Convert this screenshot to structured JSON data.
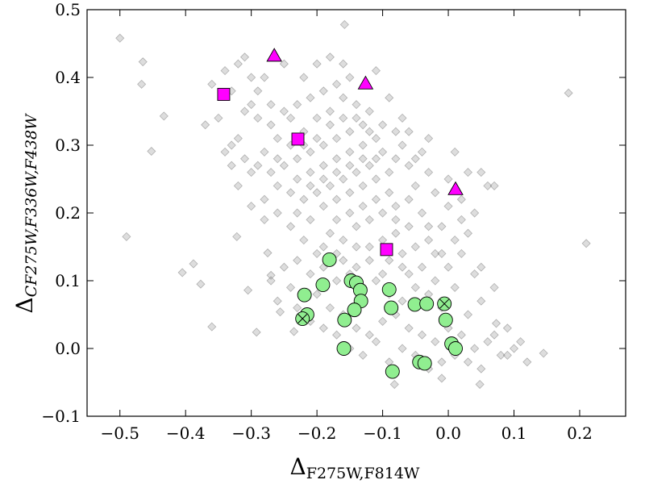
{
  "chart_data": {
    "type": "scatter",
    "xlabel": {
      "main": "Δ",
      "sub": "F275W,F814W"
    },
    "ylabel": {
      "main": "Δ",
      "sub": "CF275W,F336W,F438W"
    },
    "xlim": [
      -0.55,
      0.27
    ],
    "ylim": [
      -0.1,
      0.5
    ],
    "xticks": [
      -0.5,
      -0.4,
      -0.3,
      -0.2,
      -0.1,
      0.0,
      0.1,
      0.2
    ],
    "xtick_labels": [
      "−0.5",
      "−0.4",
      "−0.3",
      "−0.2",
      "−0.1",
      "0.0",
      "0.1",
      "0.2"
    ],
    "yticks": [
      -0.1,
      0.0,
      0.1,
      0.2,
      0.3,
      0.4,
      0.5
    ],
    "ytick_labels": [
      "−0.1",
      "0.0",
      "0.1",
      "0.2",
      "0.3",
      "0.4",
      "0.5"
    ],
    "grid": false,
    "series": [
      {
        "marker": "diamond",
        "color": "#a9a9a9",
        "points": [
          [
            -0.5,
            0.458
          ],
          [
            -0.465,
            0.423
          ],
          [
            -0.467,
            0.39
          ],
          [
            -0.452,
            0.291
          ],
          [
            -0.433,
            0.343
          ],
          [
            -0.49,
            0.165
          ],
          [
            -0.405,
            0.112
          ],
          [
            -0.388,
            0.125
          ],
          [
            -0.377,
            0.095
          ],
          [
            -0.36,
            0.032
          ],
          [
            -0.322,
            0.165
          ],
          [
            -0.305,
            0.086
          ],
          [
            -0.292,
            0.024
          ],
          [
            -0.275,
            0.141
          ],
          [
            -0.27,
            0.108
          ],
          [
            -0.256,
            0.054
          ],
          [
            -0.235,
            0.025
          ],
          [
            -0.158,
            0.478
          ],
          [
            0.183,
            0.377
          ],
          [
            0.21,
            0.155
          ],
          [
            0.145,
            -0.007
          ],
          [
            0.073,
            0.037
          ],
          [
            -0.082,
            -0.053
          ],
          [
            -0.01,
            -0.044
          ],
          [
            0.048,
            -0.053
          ],
          [
            -0.32,
            0.42
          ],
          [
            -0.3,
            0.4
          ],
          [
            -0.33,
            0.38
          ],
          [
            -0.3,
            0.36
          ],
          [
            -0.29,
            0.34
          ],
          [
            -0.32,
            0.31
          ],
          [
            -0.35,
            0.34
          ],
          [
            -0.37,
            0.33
          ],
          [
            -0.34,
            0.29
          ],
          [
            -0.33,
            0.27
          ],
          [
            -0.31,
            0.35
          ],
          [
            -0.28,
            0.4
          ],
          [
            -0.25,
            0.42
          ],
          [
            -0.22,
            0.4
          ],
          [
            -0.2,
            0.42
          ],
          [
            -0.18,
            0.43
          ],
          [
            -0.16,
            0.42
          ],
          [
            -0.15,
            0.4
          ],
          [
            -0.17,
            0.39
          ],
          [
            -0.19,
            0.38
          ],
          [
            -0.21,
            0.37
          ],
          [
            -0.23,
            0.36
          ],
          [
            -0.25,
            0.35
          ],
          [
            -0.27,
            0.33
          ],
          [
            -0.26,
            0.31
          ],
          [
            -0.24,
            0.3
          ],
          [
            -0.22,
            0.32
          ],
          [
            -0.2,
            0.34
          ],
          [
            -0.18,
            0.35
          ],
          [
            -0.16,
            0.37
          ],
          [
            -0.14,
            0.36
          ],
          [
            -0.12,
            0.35
          ],
          [
            -0.13,
            0.33
          ],
          [
            -0.15,
            0.32
          ],
          [
            -0.17,
            0.31
          ],
          [
            -0.19,
            0.3
          ],
          [
            -0.21,
            0.29
          ],
          [
            -0.23,
            0.28
          ],
          [
            -0.25,
            0.27
          ],
          [
            -0.27,
            0.26
          ],
          [
            -0.23,
            0.25
          ],
          [
            -0.21,
            0.26
          ],
          [
            -0.19,
            0.27
          ],
          [
            -0.17,
            0.28
          ],
          [
            -0.15,
            0.29
          ],
          [
            -0.13,
            0.3
          ],
          [
            -0.11,
            0.31
          ],
          [
            -0.1,
            0.29
          ],
          [
            -0.12,
            0.27
          ],
          [
            -0.14,
            0.26
          ],
          [
            -0.16,
            0.25
          ],
          [
            -0.18,
            0.24
          ],
          [
            -0.2,
            0.23
          ],
          [
            -0.22,
            0.22
          ],
          [
            -0.19,
            0.21
          ],
          [
            -0.17,
            0.22
          ],
          [
            -0.15,
            0.23
          ],
          [
            -0.13,
            0.24
          ],
          [
            -0.11,
            0.25
          ],
          [
            -0.09,
            0.26
          ],
          [
            -0.08,
            0.28
          ],
          [
            -0.07,
            0.3
          ],
          [
            -0.06,
            0.27
          ],
          [
            -0.09,
            0.23
          ],
          [
            -0.11,
            0.22
          ],
          [
            -0.13,
            0.21
          ],
          [
            -0.15,
            0.2
          ],
          [
            -0.17,
            0.19
          ],
          [
            -0.14,
            0.18
          ],
          [
            -0.12,
            0.19
          ],
          [
            -0.1,
            0.2
          ],
          [
            -0.08,
            0.21
          ],
          [
            -0.06,
            0.22
          ],
          [
            -0.05,
            0.24
          ],
          [
            -0.04,
            0.2
          ],
          [
            -0.06,
            0.18
          ],
          [
            -0.08,
            0.17
          ],
          [
            -0.1,
            0.16
          ],
          [
            -0.12,
            0.15
          ],
          [
            -0.09,
            0.13
          ],
          [
            -0.07,
            0.14
          ],
          [
            -0.05,
            0.15
          ],
          [
            -0.03,
            0.16
          ],
          [
            -0.01,
            0.18
          ],
          [
            -0.02,
            0.14
          ],
          [
            -0.04,
            0.12
          ],
          [
            -0.06,
            0.11
          ],
          [
            -0.02,
            0.1
          ],
          [
            0.0,
            0.12
          ],
          [
            0.02,
            0.14
          ],
          [
            -0.11,
            0.41
          ],
          [
            -0.09,
            0.37
          ],
          [
            -0.07,
            0.34
          ],
          [
            -0.06,
            0.32
          ],
          [
            -0.04,
            0.29
          ],
          [
            -0.03,
            0.26
          ],
          [
            0.0,
            0.25
          ],
          [
            0.01,
            0.29
          ],
          [
            0.03,
            0.26
          ],
          [
            0.02,
            0.22
          ],
          [
            0.04,
            0.2
          ],
          [
            0.06,
            0.24
          ],
          [
            0.05,
            0.26
          ],
          [
            0.02,
            0.19
          ],
          [
            0.01,
            0.16
          ],
          [
            -0.28,
            0.22
          ],
          [
            -0.26,
            0.2
          ],
          [
            -0.24,
            0.18
          ],
          [
            -0.22,
            0.16
          ],
          [
            -0.2,
            0.14
          ],
          [
            -0.23,
            0.13
          ],
          [
            -0.25,
            0.12
          ],
          [
            -0.27,
            0.1
          ],
          [
            -0.24,
            0.09
          ],
          [
            -0.26,
            0.07
          ],
          [
            -0.2,
            0.08
          ],
          [
            -0.18,
            0.06
          ],
          [
            -0.16,
            0.05
          ],
          [
            -0.14,
            0.03
          ],
          [
            -0.12,
            0.02
          ],
          [
            -0.1,
            0.04
          ],
          [
            -0.08,
            0.05
          ],
          [
            -0.06,
            0.03
          ],
          [
            -0.04,
            0.02
          ],
          [
            -0.02,
            0.01
          ],
          [
            0.0,
            0.03
          ],
          [
            0.02,
            0.02
          ],
          [
            0.04,
            0.0
          ],
          [
            0.06,
            0.01
          ],
          [
            0.08,
            -0.01
          ],
          [
            0.1,
            0.0
          ],
          [
            0.03,
            0.05
          ],
          [
            0.05,
            0.07
          ],
          [
            0.01,
            0.09
          ],
          [
            -0.01,
            0.06
          ],
          [
            -0.03,
            0.08
          ],
          [
            -0.05,
            0.09
          ],
          [
            -0.07,
            0.07
          ],
          [
            -0.09,
            0.08
          ],
          [
            -0.11,
            0.1
          ],
          [
            -0.13,
            0.09
          ],
          [
            -0.15,
            0.11
          ],
          [
            -0.17,
            0.1
          ],
          [
            -0.19,
            0.12
          ],
          [
            -0.21,
            0.11
          ],
          [
            -0.23,
            0.06
          ],
          [
            -0.21,
            0.04
          ],
          [
            -0.19,
            0.03
          ],
          [
            -0.17,
            0.02
          ],
          [
            -0.15,
            0.0
          ],
          [
            -0.13,
            -0.01
          ],
          [
            -0.11,
            0.01
          ],
          [
            -0.09,
            -0.02
          ],
          [
            -0.07,
            0.0
          ],
          [
            -0.05,
            -0.01
          ],
          [
            -0.03,
            -0.03
          ],
          [
            -0.01,
            -0.02
          ],
          [
            0.01,
            -0.01
          ],
          [
            0.03,
            -0.02
          ],
          [
            0.05,
            -0.03
          ],
          [
            0.07,
            0.02
          ],
          [
            0.09,
            0.03
          ],
          [
            0.11,
            0.01
          ],
          [
            0.12,
            -0.02
          ],
          [
            0.09,
            -0.01
          ],
          [
            -0.34,
            0.41
          ],
          [
            -0.36,
            0.39
          ],
          [
            -0.31,
            0.43
          ],
          [
            -0.29,
            0.38
          ],
          [
            -0.27,
            0.36
          ],
          [
            -0.33,
            0.3
          ],
          [
            -0.31,
            0.28
          ],
          [
            -0.29,
            0.27
          ],
          [
            -0.28,
            0.29
          ],
          [
            -0.26,
            0.28
          ],
          [
            -0.24,
            0.34
          ],
          [
            -0.22,
            0.3
          ],
          [
            -0.2,
            0.31
          ],
          [
            -0.18,
            0.33
          ],
          [
            -0.16,
            0.34
          ],
          [
            -0.14,
            0.34
          ],
          [
            -0.12,
            0.32
          ],
          [
            -0.1,
            0.33
          ],
          [
            -0.08,
            0.32
          ],
          [
            -0.11,
            0.28
          ],
          [
            -0.13,
            0.28
          ],
          [
            -0.15,
            0.27
          ],
          [
            -0.17,
            0.26
          ],
          [
            -0.19,
            0.25
          ],
          [
            -0.21,
            0.24
          ],
          [
            -0.24,
            0.23
          ],
          [
            -0.26,
            0.24
          ],
          [
            -0.08,
            0.19
          ],
          [
            -0.07,
            0.12
          ],
          [
            -0.03,
            0.18
          ],
          [
            -0.01,
            0.14
          ],
          [
            0.0,
            0.21
          ],
          [
            0.03,
            0.17
          ],
          [
            0.05,
            0.12
          ],
          [
            0.07,
            0.09
          ],
          [
            0.07,
            0.24
          ],
          [
            0.04,
            0.11
          ],
          [
            -0.02,
            0.23
          ],
          [
            -0.05,
            0.28
          ],
          [
            -0.03,
            0.31
          ],
          [
            -0.32,
            0.24
          ],
          [
            -0.3,
            0.26
          ],
          [
            -0.3,
            0.21
          ],
          [
            -0.28,
            0.19
          ],
          [
            -0.23,
            0.2
          ],
          [
            -0.21,
            0.19
          ],
          [
            -0.18,
            0.17
          ],
          [
            -0.16,
            0.16
          ],
          [
            -0.14,
            0.15
          ],
          [
            -0.12,
            0.13
          ],
          [
            -0.1,
            0.11
          ],
          [
            -0.14,
            0.12
          ],
          [
            -0.16,
            0.13
          ],
          [
            -0.19,
            0.15
          ],
          [
            -0.17,
            0.14
          ]
        ]
      },
      {
        "marker": "circle",
        "color": "#90ee90",
        "points": [
          [
            -0.181,
            0.131
          ],
          [
            -0.219,
            0.079
          ],
          [
            -0.191,
            0.094
          ],
          [
            -0.148,
            0.1
          ],
          [
            -0.14,
            0.097
          ],
          [
            -0.134,
            0.086
          ],
          [
            -0.133,
            0.07
          ],
          [
            -0.143,
            0.057
          ],
          [
            -0.158,
            0.042
          ],
          [
            -0.215,
            0.05
          ],
          [
            -0.159,
            0.0
          ],
          [
            -0.09,
            0.087
          ],
          [
            -0.087,
            0.06
          ],
          [
            -0.051,
            0.065
          ],
          [
            -0.033,
            0.066
          ],
          [
            -0.004,
            0.042
          ],
          [
            -0.044,
            -0.02
          ],
          [
            -0.036,
            -0.022
          ],
          [
            -0.085,
            -0.034
          ],
          [
            0.005,
            0.007
          ],
          [
            0.011,
            0.0
          ]
        ]
      },
      {
        "marker": "circle-x",
        "color": "#90ee90",
        "points": [
          [
            -0.222,
            0.044
          ],
          [
            -0.006,
            0.066
          ]
        ]
      },
      {
        "marker": "square",
        "color": "#ff00ff",
        "points": [
          [
            -0.342,
            0.375
          ],
          [
            -0.229,
            0.309
          ],
          [
            -0.094,
            0.146
          ]
        ]
      },
      {
        "marker": "triangle",
        "color": "#ff00ff",
        "points": [
          [
            -0.265,
            0.432
          ],
          [
            -0.126,
            0.391
          ],
          [
            0.011,
            0.235
          ]
        ]
      }
    ]
  }
}
